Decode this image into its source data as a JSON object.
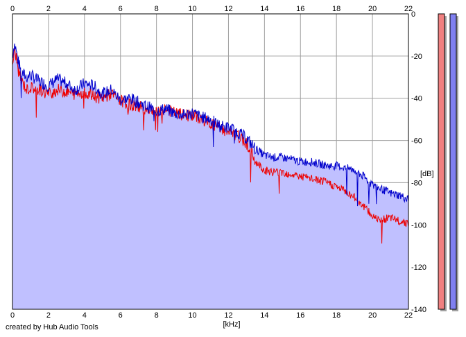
{
  "chart_data": {
    "type": "area",
    "xlabel": "[kHz]",
    "ylabel": "[dB]",
    "xlim": [
      0,
      22
    ],
    "ylim": [
      -140,
      0
    ],
    "x_ticks": [
      0,
      2,
      4,
      6,
      8,
      10,
      12,
      14,
      16,
      18,
      20,
      22
    ],
    "y_ticks": [
      0,
      -20,
      -40,
      -60,
      -80,
      -100,
      -120,
      -140
    ],
    "grid": true,
    "series": [
      {
        "color": "#0000cc",
        "fill": "#c0c0ff",
        "x": [
          0,
          0.1,
          0.2,
          0.3,
          0.5,
          0.8,
          1.0,
          1.5,
          2.0,
          2.5,
          3.0,
          3.5,
          4.0,
          4.5,
          5.0,
          5.5,
          6.0,
          6.5,
          7.0,
          7.5,
          8.0,
          8.5,
          9.0,
          9.5,
          10.0,
          10.5,
          11.0,
          11.5,
          12.0,
          12.5,
          13.0,
          13.5,
          14.0,
          14.5,
          15.0,
          15.5,
          16.0,
          16.5,
          17.0,
          17.5,
          18.0,
          18.5,
          19.0,
          19.5,
          20.0,
          20.5,
          21.0,
          21.5,
          22.0
        ],
        "values": [
          -20,
          -14,
          -17,
          -22,
          -28,
          -30,
          -29,
          -32,
          -34,
          -31,
          -33,
          -36,
          -33,
          -34,
          -38,
          -36,
          -41,
          -40,
          -42,
          -44,
          -46,
          -45,
          -47,
          -48,
          -47,
          -49,
          -50,
          -53,
          -54,
          -56,
          -59,
          -64,
          -67,
          -68,
          -68,
          -69,
          -70,
          -70,
          -71,
          -72,
          -72,
          -73,
          -74,
          -77,
          -81,
          -83,
          -85,
          -86,
          -88
        ]
      },
      {
        "color": "#ee0000",
        "x": [
          0,
          0.1,
          0.2,
          0.3,
          0.5,
          0.8,
          1.0,
          1.5,
          2.0,
          2.5,
          3.0,
          3.5,
          4.0,
          4.5,
          5.0,
          5.5,
          6.0,
          6.5,
          7.0,
          7.5,
          8.0,
          8.5,
          9.0,
          9.5,
          10.0,
          10.5,
          11.0,
          11.5,
          12.0,
          12.5,
          13.0,
          13.5,
          14.0,
          14.5,
          15.0,
          15.5,
          16.0,
          16.5,
          17.0,
          17.5,
          18.0,
          18.5,
          19.0,
          19.5,
          20.0,
          20.5,
          21.0,
          21.5,
          22.0
        ],
        "values": [
          -24,
          -18,
          -20,
          -26,
          -32,
          -36,
          -35,
          -36,
          -38,
          -36,
          -37,
          -38,
          -37,
          -39,
          -40,
          -38,
          -41,
          -43,
          -44,
          -45,
          -46,
          -45,
          -47,
          -48,
          -48,
          -50,
          -52,
          -54,
          -56,
          -58,
          -61,
          -70,
          -74,
          -75,
          -75,
          -76,
          -77,
          -78,
          -79,
          -80,
          -82,
          -84,
          -87,
          -91,
          -96,
          -97,
          -97,
          -98,
          -99
        ]
      }
    ],
    "level_meters": [
      {
        "color": "#f08080"
      },
      {
        "color": "#8080f0"
      }
    ]
  },
  "footer": {
    "credit": "created by Hub Audio Tools"
  }
}
